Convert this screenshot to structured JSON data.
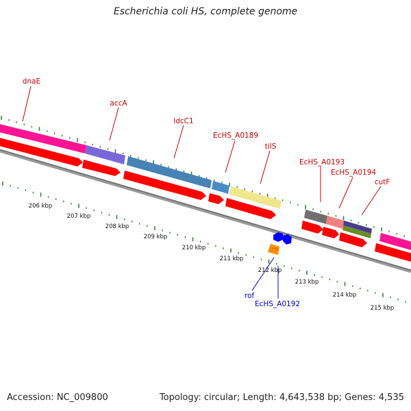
{
  "title": "Escherichia coli HS, complete genome",
  "footer": {
    "accession": "Accession: NC_009800",
    "summary": "Topology: circular; Length: 4,643,538 bp; Genes: 4,535"
  },
  "colors": {
    "label_top": "#cc0000",
    "label_bottom": "#0000cc",
    "tick": "#2e8b2e",
    "backbone": "#808080",
    "cds": "#ff0000"
  },
  "scale_labels": [
    "206 kbp",
    "207 kbp",
    "208 kbp",
    "209 kbp",
    "210 kbp",
    "211 kbp",
    "212 kbp",
    "213 kbp",
    "214 kbp",
    "215 kbp"
  ],
  "gene_labels_top": [
    "dnaE",
    "accA",
    "ldcC1",
    "EcHS_A0189",
    "tilS",
    "EcHS_A0193",
    "EcHS_A0194",
    "cutF"
  ],
  "gene_labels_bottom": [
    "rof",
    "EcHS_A0192"
  ]
}
